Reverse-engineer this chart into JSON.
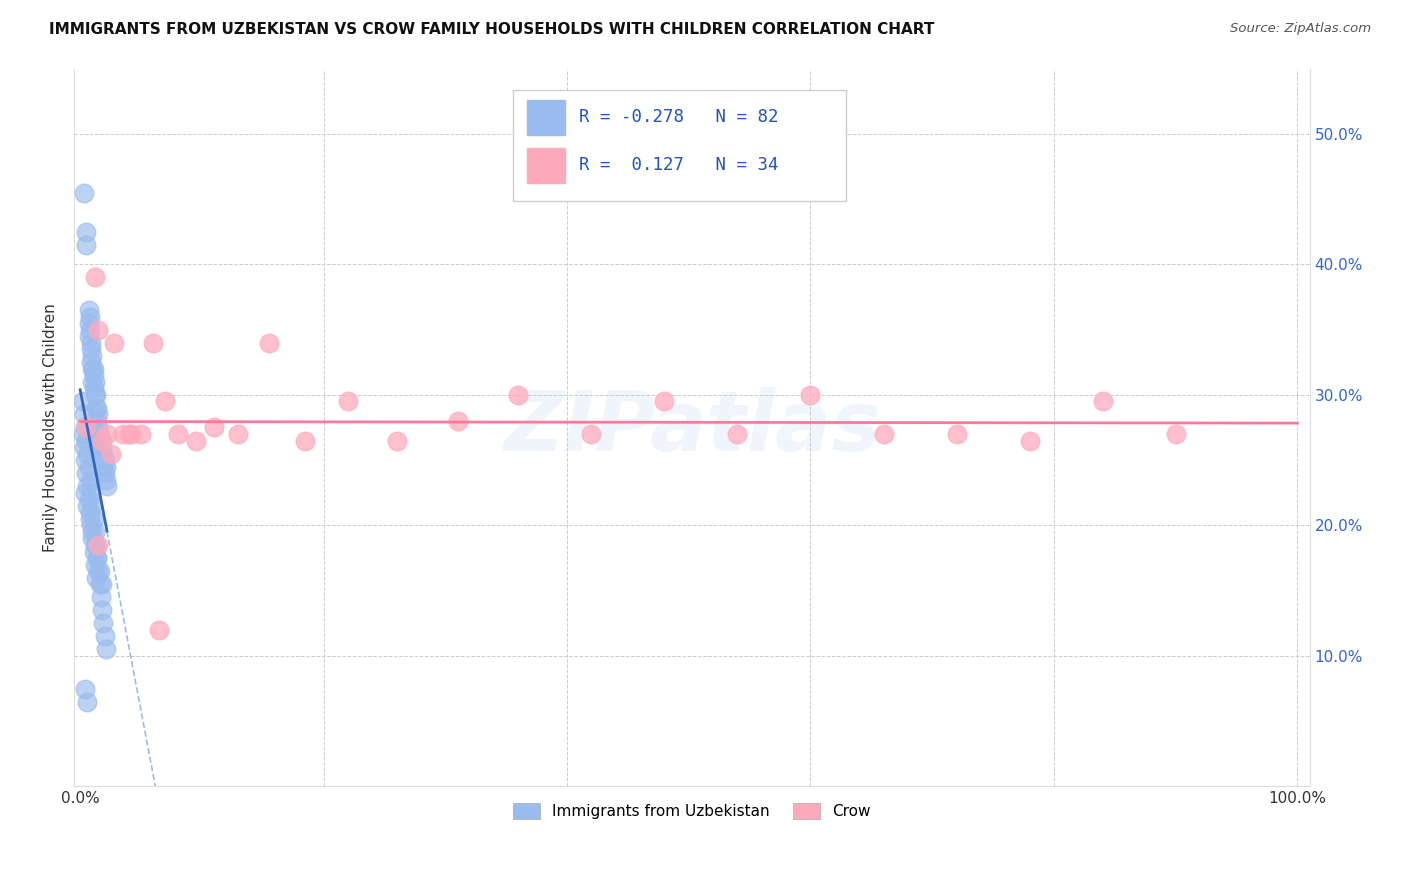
{
  "title": "IMMIGRANTS FROM UZBEKISTAN VS CROW FAMILY HOUSEHOLDS WITH CHILDREN CORRELATION CHART",
  "source": "Source: ZipAtlas.com",
  "ylabel": "Family Households with Children",
  "legend_label1": "Immigrants from Uzbekistan",
  "legend_label2": "Crow",
  "color_blue": "#99BBEE",
  "color_pink": "#FFAABB",
  "color_blue_line": "#3366BB",
  "color_pink_line": "#FF7799",
  "background_color": "#FFFFFF",
  "watermark_text": "ZIPatlas",
  "blue_dots_x": [
    0.003,
    0.005,
    0.005,
    0.007,
    0.007,
    0.007,
    0.008,
    0.008,
    0.009,
    0.009,
    0.009,
    0.01,
    0.01,
    0.01,
    0.011,
    0.011,
    0.011,
    0.012,
    0.012,
    0.013,
    0.013,
    0.014,
    0.014,
    0.015,
    0.015,
    0.015,
    0.016,
    0.016,
    0.017,
    0.017,
    0.018,
    0.018,
    0.019,
    0.019,
    0.02,
    0.02,
    0.021,
    0.021,
    0.022,
    0.002,
    0.003,
    0.004,
    0.005,
    0.006,
    0.007,
    0.008,
    0.009,
    0.01,
    0.011,
    0.012,
    0.013,
    0.014,
    0.015,
    0.016,
    0.017,
    0.018,
    0.019,
    0.02,
    0.021,
    0.002,
    0.003,
    0.004,
    0.005,
    0.006,
    0.007,
    0.008,
    0.009,
    0.01,
    0.011,
    0.012,
    0.013,
    0.004,
    0.006,
    0.008,
    0.01,
    0.012,
    0.014,
    0.016,
    0.018,
    0.004,
    0.006
  ],
  "blue_dots_y": [
    0.455,
    0.425,
    0.415,
    0.365,
    0.355,
    0.345,
    0.36,
    0.35,
    0.34,
    0.335,
    0.325,
    0.33,
    0.32,
    0.31,
    0.32,
    0.315,
    0.305,
    0.31,
    0.3,
    0.3,
    0.29,
    0.29,
    0.28,
    0.285,
    0.275,
    0.265,
    0.27,
    0.26,
    0.265,
    0.255,
    0.26,
    0.25,
    0.255,
    0.245,
    0.25,
    0.24,
    0.245,
    0.235,
    0.23,
    0.295,
    0.285,
    0.275,
    0.265,
    0.255,
    0.245,
    0.235,
    0.225,
    0.215,
    0.205,
    0.195,
    0.185,
    0.175,
    0.165,
    0.155,
    0.145,
    0.135,
    0.125,
    0.115,
    0.105,
    0.27,
    0.26,
    0.25,
    0.24,
    0.23,
    0.22,
    0.21,
    0.2,
    0.19,
    0.18,
    0.17,
    0.16,
    0.225,
    0.215,
    0.205,
    0.195,
    0.185,
    0.175,
    0.165,
    0.155,
    0.075,
    0.065
  ],
  "pink_dots_x": [
    0.005,
    0.012,
    0.015,
    0.018,
    0.022,
    0.028,
    0.035,
    0.042,
    0.05,
    0.06,
    0.07,
    0.08,
    0.095,
    0.11,
    0.13,
    0.155,
    0.185,
    0.22,
    0.26,
    0.31,
    0.36,
    0.42,
    0.48,
    0.54,
    0.6,
    0.66,
    0.72,
    0.78,
    0.84,
    0.9,
    0.015,
    0.025,
    0.04,
    0.065
  ],
  "pink_dots_y": [
    0.275,
    0.39,
    0.35,
    0.265,
    0.27,
    0.34,
    0.27,
    0.27,
    0.27,
    0.34,
    0.295,
    0.27,
    0.265,
    0.275,
    0.27,
    0.34,
    0.265,
    0.295,
    0.265,
    0.28,
    0.3,
    0.27,
    0.295,
    0.27,
    0.3,
    0.27,
    0.27,
    0.265,
    0.295,
    0.27,
    0.185,
    0.255,
    0.27,
    0.12
  ],
  "ylim_min": 0.0,
  "ylim_max": 0.55,
  "xlim_min": -0.005,
  "xlim_max": 1.01
}
